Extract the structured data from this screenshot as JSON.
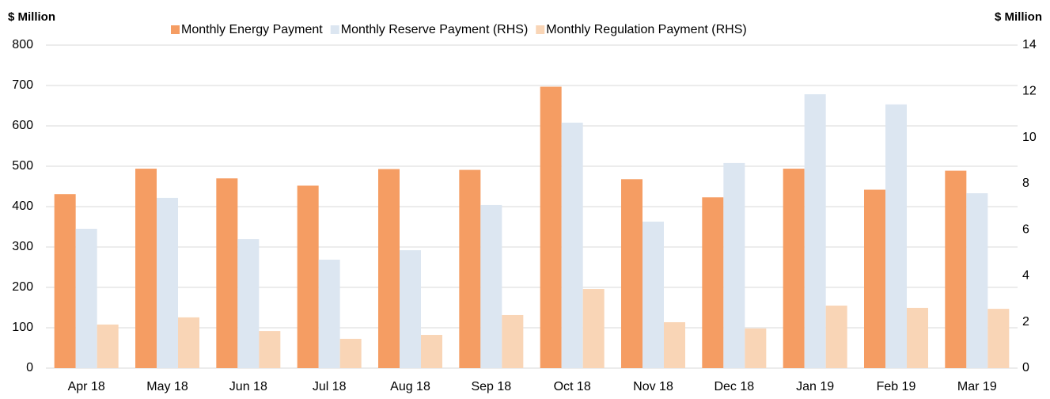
{
  "chart_data": {
    "type": "bar",
    "y_label": "$ Million",
    "y2_label": "$ Million",
    "categories": [
      "Apr 18",
      "May 18",
      "Jun 18",
      "Jul 18",
      "Aug 18",
      "Sep 18",
      "Oct 18",
      "Nov 18",
      "Dec 18",
      "Jan 19",
      "Feb 19",
      "Mar 19"
    ],
    "series": [
      {
        "name": "Monthly Energy Payment",
        "color": "#f59d63",
        "values": [
          431,
          494,
          470,
          452,
          493,
          491,
          697,
          468,
          423,
          494,
          442,
          489
        ]
      },
      {
        "name": "Monthly Reserve Payment (RHS)",
        "color": "#dce6f1",
        "axis": "y2",
        "values": [
          6.04,
          7.38,
          5.59,
          4.7,
          5.11,
          7.07,
          10.64,
          6.35,
          8.89,
          11.87,
          11.43,
          7.58
        ]
      },
      {
        "name": "Monthly Regulation Payment (RHS)",
        "color": "#f9d5b6",
        "axis": "y2",
        "values": [
          1.89,
          2.2,
          1.61,
          1.27,
          1.44,
          2.3,
          3.43,
          1.99,
          1.72,
          2.71,
          2.61,
          2.57
        ]
      }
    ],
    "ylim": [
      0,
      800
    ],
    "yticks": [
      0,
      100,
      200,
      300,
      400,
      500,
      600,
      700,
      800
    ],
    "y2lim": [
      0,
      14
    ],
    "y2ticks": [
      0,
      2,
      4,
      6,
      8,
      10,
      12,
      14
    ],
    "grid": true,
    "legend": "top"
  }
}
